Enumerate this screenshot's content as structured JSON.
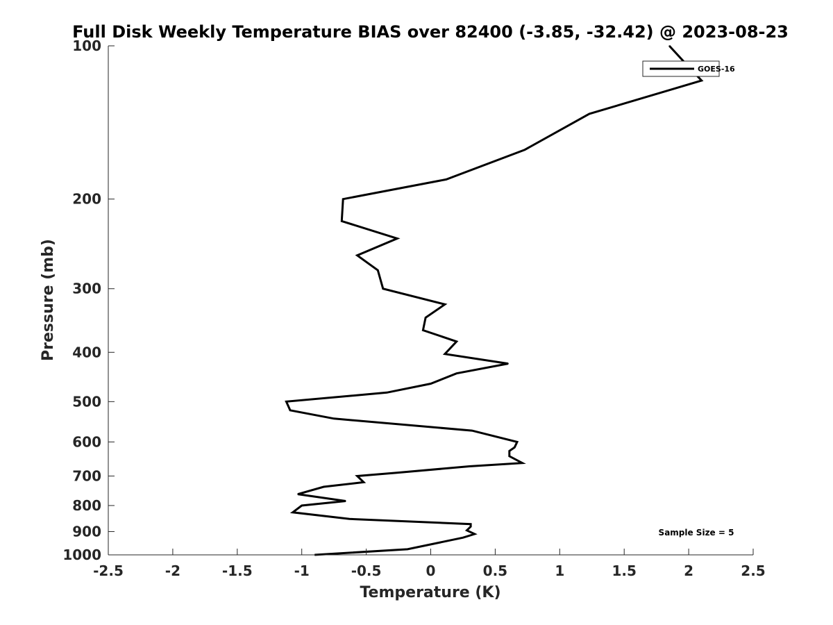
{
  "chart_data": {
    "type": "line",
    "title": "Full Disk Weekly Temperature BIAS over 82400 (-3.85, -32.42) @ 2023-08-23",
    "xlabel": "Temperature (K)",
    "ylabel": "Pressure (mb)",
    "xlim": [
      -2.5,
      2.5
    ],
    "ylim": [
      100,
      1000
    ],
    "y_scale": "log",
    "y_reversed": true,
    "grid": false,
    "legend_position": "top-right",
    "x_ticks": [
      -2.5,
      -2,
      -1.5,
      -1,
      -0.5,
      0,
      0.5,
      1,
      1.5,
      2,
      2.5
    ],
    "x_tick_labels": [
      "-2.5",
      "-2",
      "-1.5",
      "-1",
      "-0.5",
      "0",
      "0.5",
      "1",
      "1.5",
      "2",
      "2.5"
    ],
    "y_ticks": [
      100,
      200,
      300,
      400,
      500,
      600,
      700,
      800,
      900,
      1000
    ],
    "y_tick_labels": [
      "100",
      "200",
      "300",
      "400",
      "500",
      "600",
      "700",
      "800",
      "900",
      "1000"
    ],
    "annotation": "Sample Size = 5",
    "series": [
      {
        "name": "GOES-16",
        "color": "#000000",
        "points": [
          {
            "x": 1.85,
            "y": 100
          },
          {
            "x": 2.0,
            "y": 110
          },
          {
            "x": 2.1,
            "y": 117
          },
          {
            "x": 1.23,
            "y": 136
          },
          {
            "x": 0.73,
            "y": 160
          },
          {
            "x": 0.12,
            "y": 183
          },
          {
            "x": -0.68,
            "y": 200
          },
          {
            "x": -0.69,
            "y": 221
          },
          {
            "x": -0.26,
            "y": 239
          },
          {
            "x": -0.57,
            "y": 258
          },
          {
            "x": -0.41,
            "y": 276
          },
          {
            "x": -0.37,
            "y": 300
          },
          {
            "x": 0.11,
            "y": 322
          },
          {
            "x": -0.04,
            "y": 342
          },
          {
            "x": -0.06,
            "y": 362
          },
          {
            "x": 0.2,
            "y": 381
          },
          {
            "x": 0.11,
            "y": 403
          },
          {
            "x": 0.6,
            "y": 421
          },
          {
            "x": 0.2,
            "y": 440
          },
          {
            "x": 0.0,
            "y": 461
          },
          {
            "x": -0.34,
            "y": 480
          },
          {
            "x": -1.12,
            "y": 500
          },
          {
            "x": -1.09,
            "y": 520
          },
          {
            "x": -0.75,
            "y": 540
          },
          {
            "x": 0.32,
            "y": 570
          },
          {
            "x": 0.67,
            "y": 600
          },
          {
            "x": 0.65,
            "y": 615
          },
          {
            "x": 0.61,
            "y": 625
          },
          {
            "x": 0.61,
            "y": 640
          },
          {
            "x": 0.71,
            "y": 660
          },
          {
            "x": 0.3,
            "y": 670
          },
          {
            "x": -0.27,
            "y": 690
          },
          {
            "x": -0.57,
            "y": 700
          },
          {
            "x": -0.52,
            "y": 720
          },
          {
            "x": -0.83,
            "y": 735
          },
          {
            "x": -1.03,
            "y": 760
          },
          {
            "x": -0.66,
            "y": 784
          },
          {
            "x": -1.0,
            "y": 800
          },
          {
            "x": -1.07,
            "y": 825
          },
          {
            "x": -0.63,
            "y": 850
          },
          {
            "x": 0.31,
            "y": 870
          },
          {
            "x": 0.31,
            "y": 880
          },
          {
            "x": 0.28,
            "y": 895
          },
          {
            "x": 0.34,
            "y": 910
          },
          {
            "x": 0.25,
            "y": 925
          },
          {
            "x": -0.18,
            "y": 975
          },
          {
            "x": -0.9,
            "y": 1000
          }
        ]
      }
    ]
  }
}
